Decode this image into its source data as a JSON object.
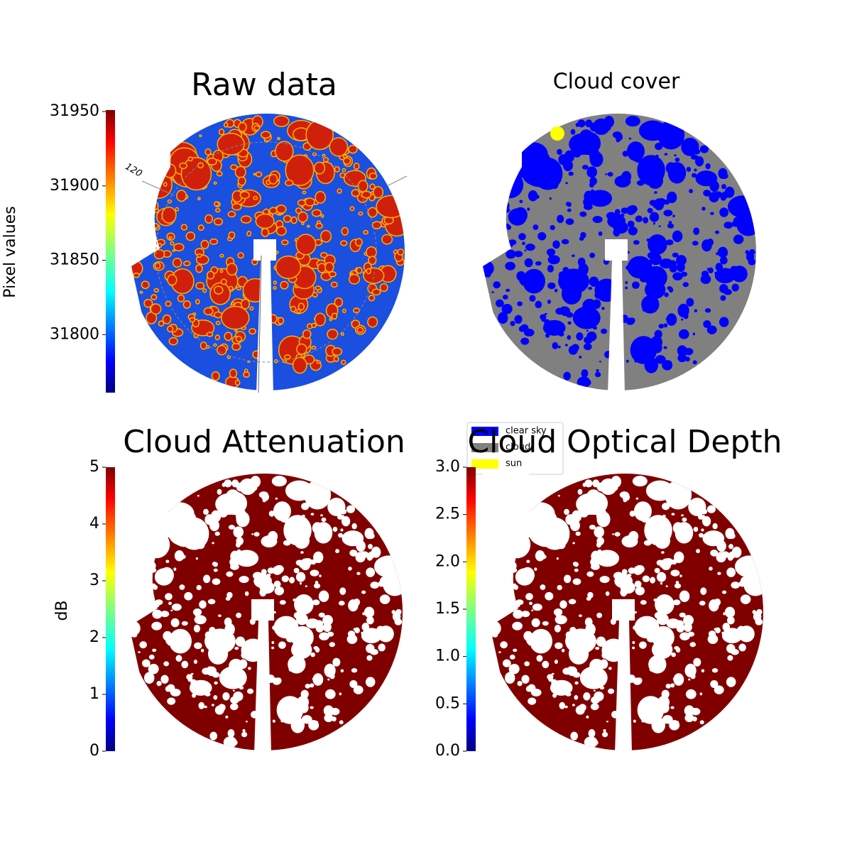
{
  "chart_data": [
    {
      "type": "image",
      "title": "Raw data",
      "colorbar_label": "Pixel values",
      "ylim": [
        31761,
        31951
      ],
      "yticks": [
        31800,
        31850,
        31900,
        31950
      ],
      "annotation": "120",
      "colormap": "jet"
    },
    {
      "type": "mask",
      "title": "Cloud cover",
      "series": [
        {
          "name": "clear sky",
          "color": "#0000ff"
        },
        {
          "name": "cloud",
          "color": "#808080"
        },
        {
          "name": "sun",
          "color": "#ffff00"
        }
      ],
      "legend": "lower left"
    },
    {
      "type": "image",
      "title": "Cloud Attenuation",
      "colorbar_label": "dB",
      "ylim": [
        0,
        5
      ],
      "yticks": [
        0,
        1,
        2,
        3,
        4,
        5
      ],
      "colormap": "jet"
    },
    {
      "type": "image",
      "title": "Cloud Optical Depth",
      "ylim": [
        0,
        3
      ],
      "yticks": [
        {
          "value": 0,
          "label": "0.0"
        },
        0.5,
        {
          "value": 1,
          "label": "1.0"
        },
        1.5,
        {
          "value": 2,
          "label": "2.0"
        },
        2.5,
        {
          "value": 3,
          "label": "3.0"
        }
      ],
      "colormap": "jet"
    }
  ]
}
